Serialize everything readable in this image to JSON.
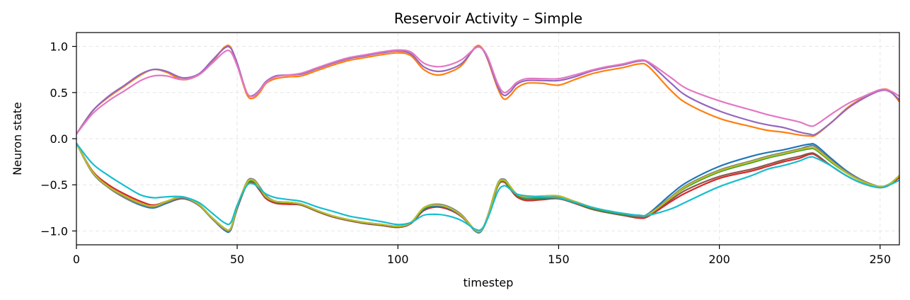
{
  "chart_data": {
    "type": "line",
    "title": "Reservoir Activity – Simple",
    "xlabel": "timestep",
    "ylabel": "Neuron state",
    "xlim": [
      0,
      256
    ],
    "ylim": [
      -1.15,
      1.15
    ],
    "xticks": [
      0,
      50,
      100,
      150,
      200,
      250
    ],
    "yticks": [
      -1.0,
      -0.5,
      0.0,
      0.5,
      1.0
    ],
    "ytick_labels": [
      "−1.0",
      "−0.5",
      "0.0",
      "0.5",
      "1.0"
    ],
    "grid": true,
    "legend": "none",
    "x": [
      0,
      5,
      10,
      15,
      20,
      24,
      28,
      33,
      38,
      42,
      46,
      48,
      50,
      53,
      55,
      57,
      59,
      62,
      66,
      70,
      75,
      80,
      85,
      90,
      95,
      100,
      104,
      108,
      112,
      116,
      120,
      124,
      126,
      128,
      131,
      133,
      135,
      137,
      140,
      145,
      150,
      155,
      160,
      165,
      170,
      175,
      178,
      185,
      190,
      200,
      210,
      215,
      220,
      225,
      228,
      230,
      235,
      240,
      245,
      250,
      253,
      256
    ],
    "series": [
      {
        "color": "#ff7f0e",
        "values": [
          0.05,
          0.3,
          0.45,
          0.57,
          0.69,
          0.75,
          0.72,
          0.64,
          0.69,
          0.82,
          0.99,
          0.99,
          0.8,
          0.48,
          0.44,
          0.5,
          0.6,
          0.65,
          0.67,
          0.68,
          0.74,
          0.8,
          0.85,
          0.88,
          0.91,
          0.93,
          0.9,
          0.75,
          0.69,
          0.72,
          0.8,
          0.99,
          0.99,
          0.85,
          0.55,
          0.43,
          0.47,
          0.55,
          0.6,
          0.6,
          0.58,
          0.64,
          0.7,
          0.74,
          0.77,
          0.81,
          0.78,
          0.52,
          0.38,
          0.22,
          0.13,
          0.09,
          0.07,
          0.04,
          0.03,
          0.04,
          0.18,
          0.34,
          0.45,
          0.53,
          0.52,
          0.4
        ]
      },
      {
        "color": "#9467bd",
        "values": [
          0.05,
          0.3,
          0.46,
          0.58,
          0.7,
          0.75,
          0.73,
          0.66,
          0.7,
          0.84,
          0.98,
          0.98,
          0.82,
          0.5,
          0.47,
          0.53,
          0.62,
          0.68,
          0.69,
          0.7,
          0.76,
          0.82,
          0.87,
          0.9,
          0.93,
          0.95,
          0.92,
          0.78,
          0.73,
          0.75,
          0.82,
          0.98,
          0.98,
          0.86,
          0.57,
          0.47,
          0.51,
          0.59,
          0.63,
          0.63,
          0.63,
          0.67,
          0.73,
          0.77,
          0.8,
          0.84,
          0.82,
          0.6,
          0.46,
          0.3,
          0.19,
          0.15,
          0.12,
          0.07,
          0.05,
          0.05,
          0.18,
          0.33,
          0.44,
          0.52,
          0.51,
          0.42
        ]
      },
      {
        "color": "#e377c2",
        "values": [
          0.05,
          0.27,
          0.41,
          0.52,
          0.63,
          0.68,
          0.68,
          0.64,
          0.69,
          0.81,
          0.94,
          0.94,
          0.79,
          0.5,
          0.46,
          0.52,
          0.61,
          0.67,
          0.69,
          0.71,
          0.77,
          0.83,
          0.88,
          0.91,
          0.94,
          0.96,
          0.94,
          0.82,
          0.78,
          0.8,
          0.86,
          0.98,
          0.98,
          0.88,
          0.6,
          0.5,
          0.54,
          0.61,
          0.65,
          0.65,
          0.65,
          0.69,
          0.74,
          0.78,
          0.81,
          0.85,
          0.83,
          0.66,
          0.54,
          0.41,
          0.31,
          0.26,
          0.22,
          0.18,
          0.14,
          0.15,
          0.27,
          0.38,
          0.46,
          0.53,
          0.52,
          0.46
        ]
      },
      {
        "color": "#d62728",
        "values": [
          -0.05,
          -0.35,
          -0.5,
          -0.6,
          -0.68,
          -0.72,
          -0.68,
          -0.64,
          -0.72,
          -0.85,
          -0.97,
          -0.98,
          -0.75,
          -0.5,
          -0.48,
          -0.56,
          -0.65,
          -0.7,
          -0.71,
          -0.72,
          -0.79,
          -0.85,
          -0.89,
          -0.92,
          -0.94,
          -0.96,
          -0.92,
          -0.78,
          -0.74,
          -0.77,
          -0.85,
          -0.99,
          -0.99,
          -0.85,
          -0.52,
          -0.47,
          -0.55,
          -0.63,
          -0.67,
          -0.66,
          -0.65,
          -0.7,
          -0.76,
          -0.8,
          -0.83,
          -0.86,
          -0.84,
          -0.68,
          -0.58,
          -0.43,
          -0.35,
          -0.3,
          -0.25,
          -0.21,
          -0.17,
          -0.18,
          -0.3,
          -0.41,
          -0.49,
          -0.53,
          -0.5,
          -0.42
        ]
      },
      {
        "color": "#8c564b",
        "values": [
          -0.05,
          -0.36,
          -0.52,
          -0.62,
          -0.7,
          -0.74,
          -0.7,
          -0.65,
          -0.72,
          -0.86,
          -0.98,
          -0.98,
          -0.76,
          -0.5,
          -0.47,
          -0.55,
          -0.64,
          -0.69,
          -0.7,
          -0.72,
          -0.79,
          -0.85,
          -0.89,
          -0.92,
          -0.94,
          -0.96,
          -0.92,
          -0.77,
          -0.73,
          -0.76,
          -0.85,
          -0.99,
          -0.99,
          -0.85,
          -0.52,
          -0.46,
          -0.54,
          -0.62,
          -0.66,
          -0.65,
          -0.65,
          -0.7,
          -0.76,
          -0.8,
          -0.83,
          -0.85,
          -0.83,
          -0.66,
          -0.55,
          -0.41,
          -0.33,
          -0.28,
          -0.23,
          -0.19,
          -0.16,
          -0.17,
          -0.3,
          -0.41,
          -0.49,
          -0.52,
          -0.49,
          -0.41
        ]
      },
      {
        "color": "#1f77b4",
        "values": [
          -0.05,
          -0.37,
          -0.53,
          -0.64,
          -0.72,
          -0.75,
          -0.7,
          -0.64,
          -0.72,
          -0.86,
          -0.99,
          -0.99,
          -0.75,
          -0.48,
          -0.44,
          -0.52,
          -0.62,
          -0.68,
          -0.69,
          -0.71,
          -0.78,
          -0.84,
          -0.88,
          -0.91,
          -0.93,
          -0.95,
          -0.91,
          -0.77,
          -0.73,
          -0.76,
          -0.84,
          -1.0,
          -1.0,
          -0.84,
          -0.5,
          -0.44,
          -0.52,
          -0.61,
          -0.65,
          -0.65,
          -0.64,
          -0.69,
          -0.75,
          -0.79,
          -0.82,
          -0.84,
          -0.81,
          -0.6,
          -0.47,
          -0.3,
          -0.19,
          -0.15,
          -0.12,
          -0.08,
          -0.06,
          -0.07,
          -0.22,
          -0.36,
          -0.46,
          -0.52,
          -0.49,
          -0.4
        ]
      },
      {
        "color": "#2ca02c",
        "values": [
          -0.05,
          -0.36,
          -0.52,
          -0.63,
          -0.7,
          -0.73,
          -0.68,
          -0.63,
          -0.71,
          -0.85,
          -0.97,
          -0.97,
          -0.74,
          -0.49,
          -0.46,
          -0.54,
          -0.63,
          -0.68,
          -0.69,
          -0.71,
          -0.78,
          -0.84,
          -0.88,
          -0.91,
          -0.93,
          -0.95,
          -0.91,
          -0.76,
          -0.72,
          -0.75,
          -0.84,
          -0.99,
          -0.99,
          -0.84,
          -0.51,
          -0.46,
          -0.54,
          -0.61,
          -0.65,
          -0.64,
          -0.64,
          -0.69,
          -0.75,
          -0.79,
          -0.82,
          -0.84,
          -0.82,
          -0.64,
          -0.52,
          -0.36,
          -0.26,
          -0.21,
          -0.17,
          -0.13,
          -0.11,
          -0.12,
          -0.26,
          -0.38,
          -0.47,
          -0.52,
          -0.49,
          -0.4
        ]
      },
      {
        "color": "#7f7f7f",
        "values": [
          -0.05,
          -0.37,
          -0.53,
          -0.64,
          -0.71,
          -0.74,
          -0.69,
          -0.64,
          -0.72,
          -0.86,
          -0.98,
          -0.98,
          -0.74,
          -0.47,
          -0.44,
          -0.52,
          -0.62,
          -0.68,
          -0.69,
          -0.71,
          -0.78,
          -0.84,
          -0.88,
          -0.91,
          -0.93,
          -0.95,
          -0.91,
          -0.75,
          -0.71,
          -0.74,
          -0.83,
          -0.99,
          -0.99,
          -0.83,
          -0.49,
          -0.44,
          -0.52,
          -0.6,
          -0.64,
          -0.63,
          -0.63,
          -0.68,
          -0.74,
          -0.78,
          -0.81,
          -0.84,
          -0.82,
          -0.63,
          -0.5,
          -0.34,
          -0.24,
          -0.19,
          -0.15,
          -0.11,
          -0.08,
          -0.09,
          -0.24,
          -0.37,
          -0.46,
          -0.52,
          -0.49,
          -0.4
        ]
      },
      {
        "color": "#bcbd22",
        "values": [
          -0.05,
          -0.36,
          -0.52,
          -0.62,
          -0.7,
          -0.73,
          -0.68,
          -0.63,
          -0.71,
          -0.85,
          -0.97,
          -0.97,
          -0.73,
          -0.48,
          -0.45,
          -0.53,
          -0.63,
          -0.68,
          -0.69,
          -0.71,
          -0.78,
          -0.84,
          -0.88,
          -0.91,
          -0.93,
          -0.95,
          -0.91,
          -0.75,
          -0.72,
          -0.75,
          -0.84,
          -0.99,
          -0.99,
          -0.84,
          -0.5,
          -0.45,
          -0.52,
          -0.6,
          -0.63,
          -0.62,
          -0.62,
          -0.68,
          -0.74,
          -0.78,
          -0.81,
          -0.83,
          -0.82,
          -0.64,
          -0.51,
          -0.35,
          -0.25,
          -0.2,
          -0.16,
          -0.12,
          -0.1,
          -0.11,
          -0.25,
          -0.38,
          -0.47,
          -0.52,
          -0.49,
          -0.4
        ]
      },
      {
        "color": "#17becf",
        "values": [
          -0.05,
          -0.27,
          -0.4,
          -0.51,
          -0.61,
          -0.64,
          -0.63,
          -0.63,
          -0.69,
          -0.8,
          -0.91,
          -0.91,
          -0.72,
          -0.51,
          -0.49,
          -0.54,
          -0.6,
          -0.64,
          -0.66,
          -0.68,
          -0.74,
          -0.79,
          -0.84,
          -0.87,
          -0.9,
          -0.93,
          -0.91,
          -0.83,
          -0.82,
          -0.84,
          -0.89,
          -0.98,
          -0.98,
          -0.86,
          -0.58,
          -0.51,
          -0.55,
          -0.6,
          -0.62,
          -0.63,
          -0.64,
          -0.69,
          -0.74,
          -0.78,
          -0.81,
          -0.83,
          -0.83,
          -0.76,
          -0.68,
          -0.52,
          -0.4,
          -0.33,
          -0.29,
          -0.24,
          -0.2,
          -0.21,
          -0.3,
          -0.41,
          -0.49,
          -0.53,
          -0.5,
          -0.45
        ]
      }
    ]
  }
}
